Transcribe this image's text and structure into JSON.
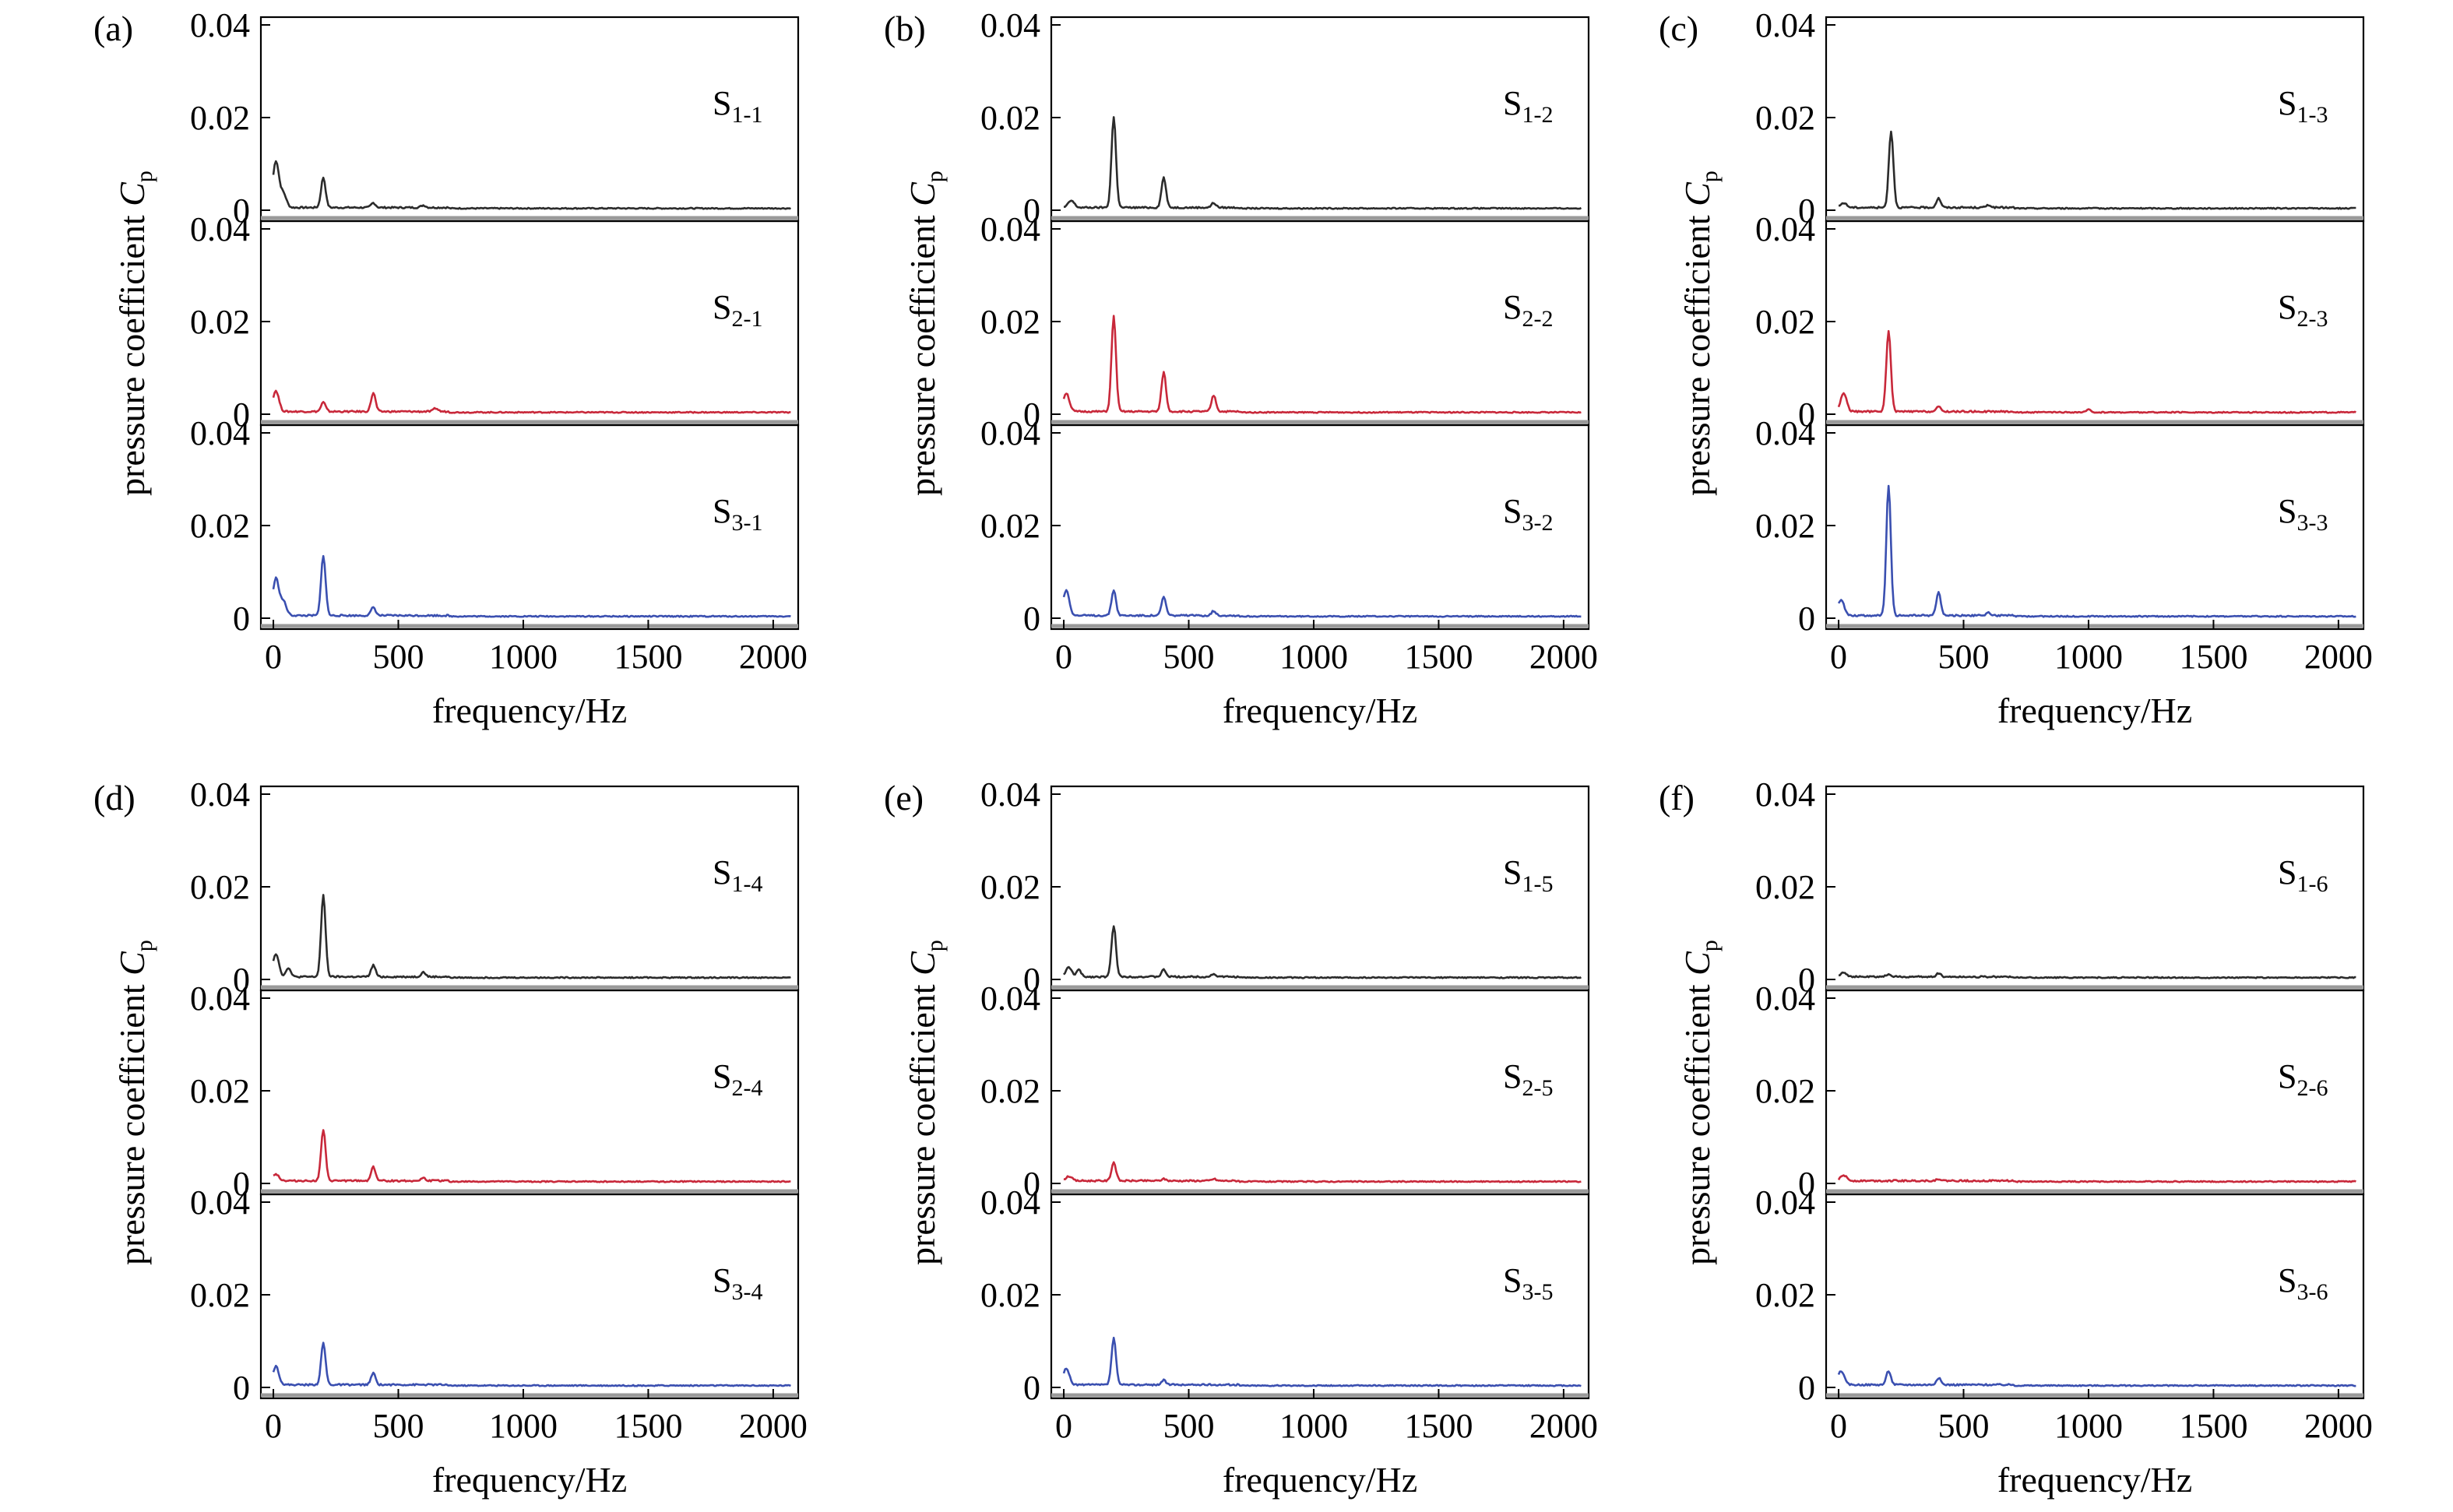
{
  "figure": {
    "panel_labels": [
      "(a)",
      "(b)",
      "(c)",
      "(d)",
      "(e)",
      "(f)"
    ],
    "xlabel": "frequency/Hz",
    "ylabel": "pressure coefficient",
    "ylabel_symbol": "C",
    "ylabel_subscript": "p",
    "series_colors": [
      "#2b2b2b",
      "#c8283a",
      "#3a4fb0"
    ]
  },
  "chart_data": [
    {
      "type": "line",
      "panel": "(a)",
      "xlim": [
        -50,
        2100
      ],
      "ylim": [
        0,
        0.04
      ],
      "xticks": [
        0,
        500,
        1000,
        1500,
        2000
      ],
      "xtick_labels": [
        "0",
        "500",
        "1000",
        "1500",
        "2000"
      ],
      "yticks": [
        0,
        0.02,
        0.04
      ],
      "ytick_labels": [
        "0",
        "0.02",
        "0.04"
      ],
      "subplots": [
        {
          "label": "S",
          "sub": "1-1",
          "peaks": [
            [
              10,
              0.01
            ],
            [
              40,
              0.003
            ],
            [
              200,
              0.0065
            ],
            [
              400,
              0.001
            ],
            [
              600,
              0.0005
            ]
          ]
        },
        {
          "label": "S",
          "sub": "2-1",
          "peaks": [
            [
              10,
              0.0045
            ],
            [
              200,
              0.002
            ],
            [
              400,
              0.004
            ],
            [
              650,
              0.0007
            ]
          ]
        },
        {
          "label": "S",
          "sub": "3-1",
          "peaks": [
            [
              10,
              0.008
            ],
            [
              40,
              0.003
            ],
            [
              200,
              0.013
            ],
            [
              400,
              0.0018
            ]
          ]
        }
      ]
    },
    {
      "type": "line",
      "panel": "(b)",
      "xlim": [
        -50,
        2100
      ],
      "ylim": [
        0,
        0.04
      ],
      "xticks": [
        0,
        500,
        1000,
        1500,
        2000
      ],
      "xtick_labels": [
        "0",
        "500",
        "1000",
        "1500",
        "2000"
      ],
      "yticks": [
        0,
        0.02,
        0.04
      ],
      "ytick_labels": [
        "0",
        "0.02",
        "0.04"
      ],
      "subplots": [
        {
          "label": "S",
          "sub": "1-2",
          "peaks": [
            [
              30,
              0.0015
            ],
            [
              200,
              0.0195
            ],
            [
              400,
              0.0065
            ],
            [
              600,
              0.001
            ]
          ]
        },
        {
          "label": "S",
          "sub": "2-2",
          "peaks": [
            [
              10,
              0.004
            ],
            [
              200,
              0.0205
            ],
            [
              400,
              0.0085
            ],
            [
              600,
              0.0035
            ]
          ]
        },
        {
          "label": "S",
          "sub": "3-2",
          "peaks": [
            [
              10,
              0.0055
            ],
            [
              200,
              0.0055
            ],
            [
              400,
              0.004
            ],
            [
              600,
              0.001
            ]
          ]
        }
      ]
    },
    {
      "type": "line",
      "panel": "(c)",
      "xlim": [
        -50,
        2100
      ],
      "ylim": [
        0,
        0.04
      ],
      "xticks": [
        0,
        500,
        1000,
        1500,
        2000
      ],
      "xtick_labels": [
        "0",
        "500",
        "1000",
        "1500",
        "2000"
      ],
      "yticks": [
        0,
        0.02,
        0.04
      ],
      "ytick_labels": [
        "0",
        "0.02",
        "0.04"
      ],
      "subplots": [
        {
          "label": "S",
          "sub": "1-3",
          "peaks": [
            [
              20,
              0.001
            ],
            [
              210,
              0.0165
            ],
            [
              400,
              0.002
            ],
            [
              600,
              0.0006
            ]
          ]
        },
        {
          "label": "S",
          "sub": "2-3",
          "peaks": [
            [
              20,
              0.004
            ],
            [
              200,
              0.0175
            ],
            [
              400,
              0.001
            ],
            [
              1000,
              0.0008
            ]
          ]
        },
        {
          "label": "S",
          "sub": "3-3",
          "peaks": [
            [
              10,
              0.0035
            ],
            [
              200,
              0.028
            ],
            [
              400,
              0.005
            ],
            [
              600,
              0.0006
            ]
          ]
        }
      ]
    },
    {
      "type": "line",
      "panel": "(d)",
      "xlim": [
        -50,
        2100
      ],
      "ylim": [
        0,
        0.04
      ],
      "xticks": [
        0,
        500,
        1000,
        1500,
        2000
      ],
      "xtick_labels": [
        "0",
        "500",
        "1000",
        "1500",
        "2000"
      ],
      "yticks": [
        0,
        0.02,
        0.04
      ],
      "ytick_labels": [
        "0",
        "0.02",
        "0.04"
      ],
      "subplots": [
        {
          "label": "S",
          "sub": "1-4",
          "peaks": [
            [
              10,
              0.005
            ],
            [
              60,
              0.002
            ],
            [
              200,
              0.0175
            ],
            [
              400,
              0.0025
            ],
            [
              600,
              0.001
            ]
          ]
        },
        {
          "label": "S",
          "sub": "2-4",
          "peaks": [
            [
              10,
              0.0015
            ],
            [
              200,
              0.011
            ],
            [
              400,
              0.003
            ],
            [
              600,
              0.0006
            ]
          ]
        },
        {
          "label": "S",
          "sub": "3-4",
          "peaks": [
            [
              10,
              0.004
            ],
            [
              200,
              0.009
            ],
            [
              400,
              0.0025
            ]
          ]
        }
      ]
    },
    {
      "type": "line",
      "panel": "(e)",
      "xlim": [
        -50,
        2100
      ],
      "ylim": [
        0,
        0.04
      ],
      "xticks": [
        0,
        500,
        1000,
        1500,
        2000
      ],
      "xtick_labels": [
        "0",
        "500",
        "1000",
        "1500",
        "2000"
      ],
      "yticks": [
        0,
        0.02,
        0.04
      ],
      "ytick_labels": [
        "0",
        "0.02",
        "0.04"
      ],
      "subplots": [
        {
          "label": "S",
          "sub": "1-5",
          "peaks": [
            [
              20,
              0.002
            ],
            [
              60,
              0.0015
            ],
            [
              200,
              0.011
            ],
            [
              400,
              0.0015
            ],
            [
              600,
              0.0006
            ]
          ]
        },
        {
          "label": "S",
          "sub": "2-5",
          "peaks": [
            [
              20,
              0.001
            ],
            [
              200,
              0.004
            ],
            [
              400,
              0.0004
            ],
            [
              600,
              0.0004
            ]
          ]
        },
        {
          "label": "S",
          "sub": "3-5",
          "peaks": [
            [
              10,
              0.0035
            ],
            [
              200,
              0.01
            ],
            [
              400,
              0.001
            ]
          ]
        }
      ]
    },
    {
      "type": "line",
      "panel": "(f)",
      "xlim": [
        -50,
        2100
      ],
      "ylim": [
        0,
        0.04
      ],
      "xticks": [
        0,
        500,
        1000,
        1500,
        2000
      ],
      "xtick_labels": [
        "0",
        "500",
        "1000",
        "1500",
        "2000"
      ],
      "yticks": [
        0,
        0.02,
        0.04
      ],
      "ytick_labels": [
        "0",
        "0.02",
        "0.04"
      ],
      "subplots": [
        {
          "label": "S",
          "sub": "1-6",
          "peaks": [
            [
              20,
              0.001
            ],
            [
              200,
              0.0006
            ],
            [
              400,
              0.0008
            ]
          ]
        },
        {
          "label": "S",
          "sub": "2-6",
          "peaks": [
            [
              20,
              0.0012
            ],
            [
              400,
              0.0004
            ]
          ]
        },
        {
          "label": "S",
          "sub": "3-6",
          "peaks": [
            [
              10,
              0.003
            ],
            [
              200,
              0.003
            ],
            [
              400,
              0.0015
            ]
          ]
        }
      ]
    }
  ]
}
